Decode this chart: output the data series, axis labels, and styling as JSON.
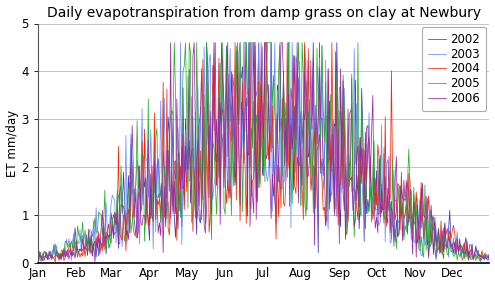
{
  "title": "Daily evapotranspiration from damp grass on clay at Newbury",
  "ylabel": "ET mm/day",
  "ylim": [
    0,
    5
  ],
  "yticks": [
    0,
    1,
    2,
    3,
    4,
    5
  ],
  "months": [
    "Jan",
    "Feb",
    "Mar",
    "Apr",
    "May",
    "Jun",
    "Jul",
    "Aug",
    "Sep",
    "Oct",
    "Nov",
    "Dec"
  ],
  "month_starts": [
    0,
    31,
    59,
    90,
    120,
    151,
    181,
    212,
    243,
    273,
    304,
    334
  ],
  "years": [
    2002,
    2003,
    2004,
    2005,
    2006
  ],
  "colors": [
    "#3333bb",
    "#6688ff",
    "#ee2200",
    "#22aa22",
    "#992299"
  ],
  "background_color": "#ffffff",
  "grid_color": "#bbbbbb",
  "linewidth": 0.55,
  "title_fontsize": 10,
  "label_fontsize": 8.5,
  "tick_fontsize": 8.5,
  "legend_fontsize": 8.5,
  "peak_day": 185,
  "peak_value": 3.0,
  "base_winter": 0.12,
  "seeds": [
    10,
    20,
    30,
    40,
    50
  ],
  "noise_relative": 0.45,
  "noise_abs": 0.08
}
